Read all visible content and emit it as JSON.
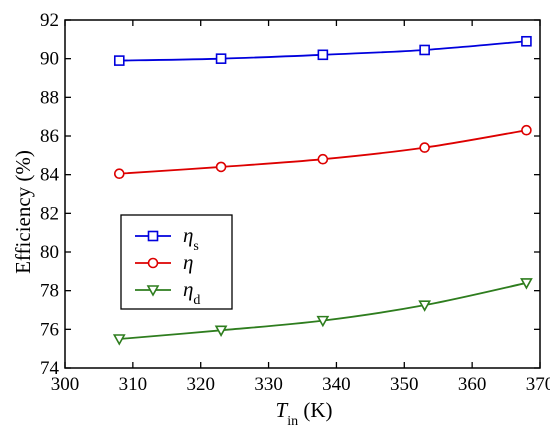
{
  "chart_data": {
    "type": "line",
    "x": [
      308,
      323,
      338,
      353,
      368
    ],
    "xlim": [
      300,
      370
    ],
    "ylim": [
      74,
      92
    ],
    "xticks": [
      300,
      310,
      320,
      330,
      340,
      350,
      360,
      370
    ],
    "yticks": [
      74,
      76,
      78,
      80,
      82,
      84,
      86,
      88,
      90,
      92
    ],
    "xlabel": {
      "main": "T",
      "sub": "in",
      "unit": " (K)"
    },
    "ylabel": "Efficiency (%)",
    "legend_position": "lower-left",
    "series": [
      {
        "name": "η",
        "sub": "s",
        "color": "#0000dd",
        "marker": "square",
        "values": [
          89.9,
          90.0,
          90.2,
          90.45,
          90.9
        ]
      },
      {
        "name": "η",
        "sub": "",
        "color": "#dd0000",
        "marker": "circle",
        "values": [
          84.05,
          84.4,
          84.8,
          85.4,
          86.3
        ]
      },
      {
        "name": "η",
        "sub": "d",
        "color": "#2e7d1e",
        "marker": "triangle-down",
        "values": [
          75.5,
          75.95,
          76.45,
          77.25,
          78.4
        ]
      }
    ]
  }
}
